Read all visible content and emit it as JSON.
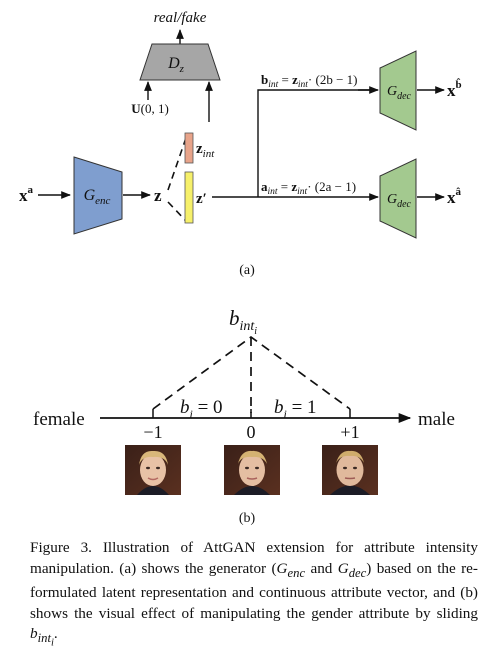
{
  "panel_a": {
    "top_label": "real/fake",
    "discriminator": "D",
    "discriminator_sub": "z",
    "noise_bold": "U",
    "noise_args": "(0, 1)",
    "input_base": "x",
    "input_sup": "a",
    "encoder": "G",
    "encoder_sub": "enc",
    "latent": "z",
    "z_int_base": "z",
    "z_int_sub": "int",
    "z_prime": "z′",
    "b_int_base": "b",
    "b_int_sub": "int",
    "b_eq": " = ",
    "b_z_base": "z",
    "b_z_sub": "int",
    "b_formula_tail": "· (2b − 1)",
    "a_int_base": "a",
    "a_int_sub": "int",
    "a_eq": " = ",
    "a_z_base": "z",
    "a_z_sub": "int",
    "a_formula_tail": "· (2a − 1)",
    "decoder": "G",
    "decoder_sub": "dec",
    "out_top_base": "x",
    "out_top_sup": "b̂",
    "out_bottom_base": "x",
    "out_bottom_sup": "â",
    "label": "(a)"
  },
  "panel_b": {
    "b_int_base": "b",
    "b_int_sub": "int",
    "b_int_subsub": "i",
    "left_label": "female",
    "right_label": "male",
    "left_region": "b",
    "left_region_sub": "i",
    "left_region_eq": " = 0",
    "right_region": "b",
    "right_region_sub": "i",
    "right_region_eq": " = 1",
    "ticks": [
      "−1",
      "0",
      "+1"
    ],
    "label": "(b)"
  },
  "caption": {
    "text_1": "Figure 3. Illustration of AttGAN extension for attribute intensity manipulation.  (a) shows the generator (",
    "g_enc": "G",
    "g_enc_sub": "enc",
    "text_and": " and ",
    "g_dec": "G",
    "g_dec_sub": "dec",
    "text_2": ") based on the re-formulated latent representation and continuous attribute vector, and (b) shows the visual effect of manipulating the gender attribute by sliding ",
    "b_int": "b",
    "b_int_sub": "int",
    "b_int_subsub": "i",
    "text_end": "."
  },
  "colors": {
    "discriminator": "#a6a6a6",
    "encoder": "#7f9ecf",
    "decoder": "#a3c98f",
    "z_int_bar": "#e8a48a",
    "z_prime_bar": "#f6f06a"
  }
}
